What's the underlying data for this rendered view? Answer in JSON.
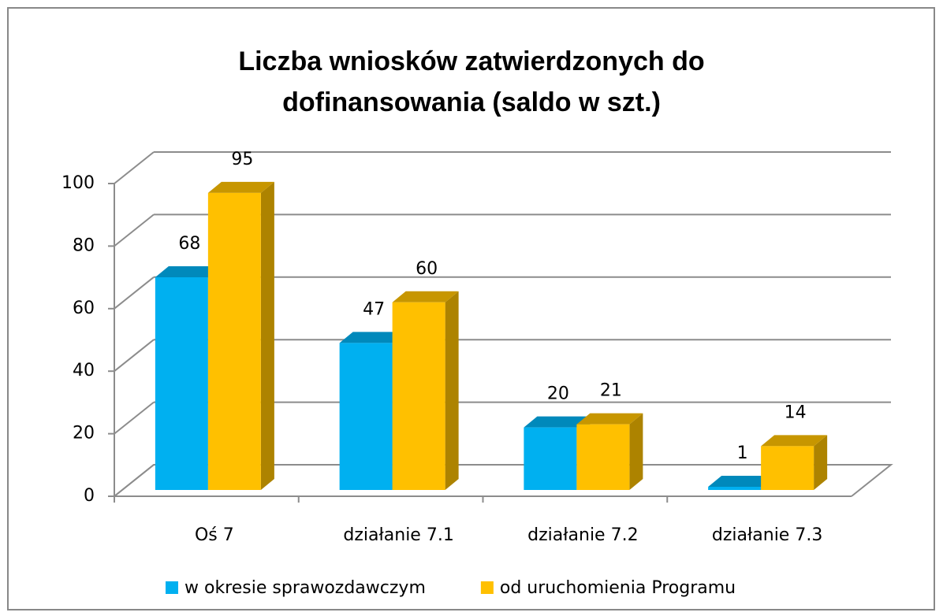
{
  "chart_data": {
    "type": "bar3d",
    "title": "Liczba wniosków zatwierdzonych do dofinansowania (saldo w szt.)",
    "categories": [
      "Oś 7",
      "działanie 7.1",
      "działanie 7.2",
      "działanie 7.3"
    ],
    "series": [
      {
        "name": "w okresie sprawozdawczym",
        "color": "#00b0f0",
        "values": [
          68,
          47,
          20,
          1
        ]
      },
      {
        "name": "od uruchomienia Programu",
        "color": "#ffc000",
        "values": [
          95,
          60,
          21,
          14
        ]
      }
    ],
    "ylim": [
      0,
      100
    ],
    "yticks": [
      0,
      20,
      40,
      60,
      80,
      100
    ],
    "grid": true,
    "legend": "bottom"
  }
}
